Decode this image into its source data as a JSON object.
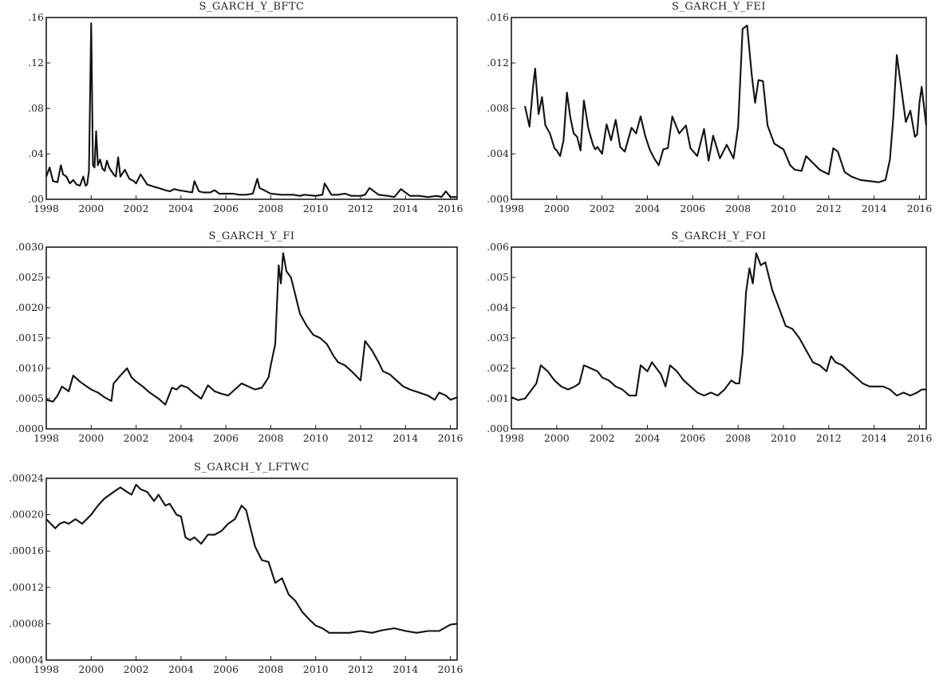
{
  "chart_data": [
    {
      "type": "line",
      "title": "S_GARCH_Y_BFTC",
      "x_ticks": [
        "1998",
        "2000",
        "2002",
        "2004",
        "2006",
        "2008",
        "2010",
        "2012",
        "2014",
        "2016"
      ],
      "y_ticks": [
        ".00",
        ".04",
        ".08",
        ".12",
        ".16"
      ],
      "xlim": [
        1998,
        2016.3
      ],
      "ylim": [
        0,
        0.16
      ],
      "series": [
        {
          "x": [
            1998.0,
            1998.15,
            1998.3,
            1998.5,
            1998.65,
            1998.75,
            1998.9,
            1999.05,
            1999.2,
            1999.35,
            1999.5,
            1999.65,
            1999.75,
            1999.82,
            1999.9,
            2000.0,
            2000.08,
            2000.15,
            2000.22,
            2000.3,
            2000.4,
            2000.5,
            2000.6,
            2000.7,
            2000.8,
            2000.9,
            2001.0,
            2001.1,
            2001.2,
            2001.3,
            2001.5,
            2001.7,
            2001.9,
            2002.0,
            2002.2,
            2002.5,
            2002.8,
            2003.0,
            2003.3,
            2003.5,
            2003.7,
            2003.9,
            2004.2,
            2004.5,
            2004.6,
            2004.8,
            2005.0,
            2005.3,
            2005.5,
            2005.7,
            2006.0,
            2006.3,
            2006.6,
            2006.9,
            2007.2,
            2007.4,
            2007.5,
            2007.7,
            2008.0,
            2008.5,
            2009.0,
            2009.3,
            2009.5,
            2010.0,
            2010.3,
            2010.4,
            2010.7,
            2011.0,
            2011.3,
            2011.6,
            2012.0,
            2012.2,
            2012.4,
            2012.8,
            2013.2,
            2013.5,
            2013.8,
            2014.2,
            2014.6,
            2015.0,
            2015.4,
            2015.6,
            2015.8,
            2016.0,
            2016.3
          ],
          "y": [
            0.02,
            0.028,
            0.016,
            0.015,
            0.03,
            0.022,
            0.02,
            0.014,
            0.017,
            0.013,
            0.012,
            0.02,
            0.012,
            0.013,
            0.025,
            0.155,
            0.03,
            0.028,
            0.06,
            0.03,
            0.035,
            0.027,
            0.025,
            0.034,
            0.028,
            0.025,
            0.022,
            0.02,
            0.037,
            0.02,
            0.026,
            0.018,
            0.016,
            0.014,
            0.022,
            0.013,
            0.011,
            0.01,
            0.008,
            0.007,
            0.009,
            0.008,
            0.007,
            0.006,
            0.016,
            0.007,
            0.006,
            0.006,
            0.008,
            0.005,
            0.005,
            0.005,
            0.004,
            0.004,
            0.005,
            0.018,
            0.01,
            0.008,
            0.005,
            0.004,
            0.004,
            0.003,
            0.004,
            0.003,
            0.004,
            0.014,
            0.004,
            0.004,
            0.005,
            0.003,
            0.003,
            0.004,
            0.01,
            0.004,
            0.003,
            0.002,
            0.009,
            0.003,
            0.003,
            0.002,
            0.003,
            0.002,
            0.007,
            0.002,
            0.002
          ]
        }
      ]
    },
    {
      "type": "line",
      "title": "S_GARCH_Y_FEI",
      "x_ticks": [
        "1998",
        "2000",
        "2002",
        "2004",
        "2006",
        "2008",
        "2010",
        "2012",
        "2014",
        "2016"
      ],
      "y_ticks": [
        ".000",
        ".004",
        ".008",
        ".012",
        ".016"
      ],
      "xlim": [
        1998,
        2016.3
      ],
      "ylim": [
        0,
        0.016
      ],
      "series": [
        {
          "x": [
            1998.6,
            1998.8,
            1998.95,
            1999.05,
            1999.2,
            1999.35,
            1999.5,
            1999.7,
            1999.9,
            2000.0,
            2000.15,
            2000.3,
            2000.45,
            2000.6,
            2000.75,
            2000.9,
            2001.05,
            2001.2,
            2001.4,
            2001.6,
            2001.7,
            2001.8,
            2002.0,
            2002.2,
            2002.4,
            2002.6,
            2002.8,
            2003.0,
            2003.3,
            2003.5,
            2003.7,
            2003.9,
            2004.1,
            2004.3,
            2004.5,
            2004.7,
            2004.9,
            2005.1,
            2005.4,
            2005.7,
            2005.9,
            2006.2,
            2006.5,
            2006.7,
            2006.9,
            2007.2,
            2007.5,
            2007.8,
            2008.0,
            2008.2,
            2008.4,
            2008.6,
            2008.75,
            2008.9,
            2009.1,
            2009.3,
            2009.6,
            2010.0,
            2010.3,
            2010.5,
            2010.8,
            2011.0,
            2011.3,
            2011.6,
            2012.0,
            2012.2,
            2012.4,
            2012.7,
            2013.0,
            2013.4,
            2013.8,
            2014.2,
            2014.5,
            2014.7,
            2014.85,
            2015.0,
            2015.2,
            2015.4,
            2015.6,
            2015.8,
            2015.9,
            2016.0,
            2016.1,
            2016.3
          ],
          "y": [
            0.0082,
            0.0064,
            0.0098,
            0.0115,
            0.0075,
            0.009,
            0.0065,
            0.0058,
            0.0045,
            0.0043,
            0.0038,
            0.0052,
            0.0094,
            0.0072,
            0.0058,
            0.0055,
            0.0043,
            0.0087,
            0.0062,
            0.0048,
            0.0044,
            0.0046,
            0.004,
            0.0066,
            0.0052,
            0.007,
            0.0046,
            0.0042,
            0.0063,
            0.0058,
            0.0073,
            0.0056,
            0.0044,
            0.0036,
            0.003,
            0.0044,
            0.0045,
            0.0073,
            0.0058,
            0.0065,
            0.0045,
            0.0038,
            0.0062,
            0.0034,
            0.0056,
            0.0036,
            0.0048,
            0.0036,
            0.0064,
            0.015,
            0.0153,
            0.011,
            0.0085,
            0.0105,
            0.0104,
            0.0065,
            0.0049,
            0.0044,
            0.003,
            0.0026,
            0.0025,
            0.0038,
            0.0032,
            0.0026,
            0.0022,
            0.0045,
            0.0042,
            0.0024,
            0.002,
            0.0017,
            0.0016,
            0.0015,
            0.0017,
            0.0035,
            0.0073,
            0.0127,
            0.0098,
            0.0068,
            0.0078,
            0.0055,
            0.0057,
            0.0085,
            0.0099,
            0.0065
          ]
        }
      ]
    },
    {
      "type": "line",
      "title": "S_GARCH_Y_FI",
      "x_ticks": [
        "1998",
        "2000",
        "2002",
        "2004",
        "2006",
        "2008",
        "2010",
        "2012",
        "2014",
        "2016"
      ],
      "y_ticks": [
        ".0000",
        ".0005",
        ".0010",
        ".0015",
        ".0020",
        ".0025",
        ".0030"
      ],
      "xlim": [
        1998,
        2016.3
      ],
      "ylim": [
        0,
        0.003
      ],
      "series": [
        {
          "x": [
            1998.0,
            1998.3,
            1998.5,
            1998.7,
            1999.0,
            1999.2,
            1999.5,
            1999.8,
            2000.0,
            2000.3,
            2000.6,
            2000.9,
            2001.0,
            2001.3,
            2001.6,
            2001.8,
            2002.0,
            2002.3,
            2002.6,
            2003.0,
            2003.3,
            2003.6,
            2003.8,
            2004.0,
            2004.3,
            2004.6,
            2004.9,
            2005.2,
            2005.5,
            2005.8,
            2006.1,
            2006.4,
            2006.7,
            2007.0,
            2007.3,
            2007.6,
            2007.9,
            2008.0,
            2008.2,
            2008.35,
            2008.45,
            2008.55,
            2008.7,
            2008.9,
            2009.1,
            2009.3,
            2009.6,
            2009.9,
            2010.2,
            2010.5,
            2010.8,
            2011.0,
            2011.3,
            2011.6,
            2012.0,
            2012.2,
            2012.5,
            2012.8,
            2013.0,
            2013.3,
            2013.6,
            2013.9,
            2014.2,
            2014.6,
            2015.0,
            2015.3,
            2015.5,
            2015.8,
            2016.0,
            2016.3
          ],
          "y": [
            0.00048,
            0.00045,
            0.00055,
            0.0007,
            0.00062,
            0.00088,
            0.00078,
            0.0007,
            0.00065,
            0.0006,
            0.00052,
            0.00046,
            0.00075,
            0.00088,
            0.001,
            0.00085,
            0.00078,
            0.0007,
            0.0006,
            0.0005,
            0.0004,
            0.00068,
            0.00065,
            0.00072,
            0.00068,
            0.00058,
            0.0005,
            0.00072,
            0.00062,
            0.00058,
            0.00055,
            0.00065,
            0.00075,
            0.0007,
            0.00065,
            0.00068,
            0.00085,
            0.00105,
            0.0014,
            0.0027,
            0.0024,
            0.0029,
            0.0026,
            0.0025,
            0.0022,
            0.0019,
            0.0017,
            0.00155,
            0.0015,
            0.0014,
            0.0012,
            0.0011,
            0.00105,
            0.00095,
            0.0008,
            0.00145,
            0.0013,
            0.0011,
            0.00095,
            0.0009,
            0.0008,
            0.0007,
            0.00065,
            0.0006,
            0.00055,
            0.00048,
            0.0006,
            0.00055,
            0.00048,
            0.00052
          ]
        }
      ]
    },
    {
      "type": "line",
      "title": "S_GARCH_Y_FOI",
      "x_ticks": [
        "1998",
        "2000",
        "2002",
        "2004",
        "2006",
        "2008",
        "2010",
        "2012",
        "2014",
        "2016"
      ],
      "y_ticks": [
        ".000",
        ".001",
        ".002",
        ".003",
        ".004",
        ".005",
        ".006"
      ],
      "xlim": [
        1998,
        2016.3
      ],
      "ylim": [
        0,
        0.006
      ],
      "series": [
        {
          "x": [
            1998.0,
            1998.3,
            1998.6,
            1998.9,
            1999.1,
            1999.3,
            1999.6,
            1999.9,
            2000.2,
            2000.5,
            2000.8,
            2001.0,
            2001.2,
            2001.5,
            2001.8,
            2002.0,
            2002.3,
            2002.6,
            2002.9,
            2003.2,
            2003.5,
            2003.7,
            2004.0,
            2004.2,
            2004.6,
            2004.8,
            2005.0,
            2005.3,
            2005.6,
            2005.9,
            2006.2,
            2006.5,
            2006.8,
            2007.1,
            2007.4,
            2007.7,
            2007.9,
            2008.05,
            2008.2,
            2008.35,
            2008.5,
            2008.65,
            2008.8,
            2009.0,
            2009.2,
            2009.5,
            2009.8,
            2010.1,
            2010.4,
            2010.7,
            2011.0,
            2011.3,
            2011.6,
            2011.9,
            2012.1,
            2012.3,
            2012.6,
            2012.9,
            2013.2,
            2013.5,
            2013.8,
            2014.1,
            2014.4,
            2014.7,
            2015.0,
            2015.3,
            2015.6,
            2015.9,
            2016.1,
            2016.3
          ],
          "y": [
            0.00105,
            0.00095,
            0.001,
            0.0013,
            0.0015,
            0.0021,
            0.0019,
            0.0016,
            0.0014,
            0.0013,
            0.0014,
            0.0015,
            0.0021,
            0.002,
            0.0019,
            0.0017,
            0.0016,
            0.0014,
            0.0013,
            0.0011,
            0.0011,
            0.0021,
            0.0019,
            0.0022,
            0.0018,
            0.0014,
            0.0021,
            0.0019,
            0.0016,
            0.0014,
            0.0012,
            0.0011,
            0.0012,
            0.0011,
            0.0013,
            0.0016,
            0.0015,
            0.0015,
            0.0025,
            0.0045,
            0.0053,
            0.0048,
            0.0058,
            0.0054,
            0.0055,
            0.0046,
            0.004,
            0.0034,
            0.0033,
            0.003,
            0.0026,
            0.0022,
            0.0021,
            0.0019,
            0.0024,
            0.0022,
            0.0021,
            0.0019,
            0.0017,
            0.0015,
            0.0014,
            0.0014,
            0.0014,
            0.0013,
            0.0011,
            0.0012,
            0.0011,
            0.0012,
            0.0013,
            0.0013
          ]
        }
      ]
    },
    {
      "type": "line",
      "title": "S_GARCH_Y_LFTWC",
      "x_ticks": [
        "1998",
        "2000",
        "2002",
        "2004",
        "2006",
        "2008",
        "2010",
        "2012",
        "2014",
        "2016"
      ],
      "y_ticks": [
        ".00004",
        ".00008",
        ".00012",
        ".00016",
        ".00020",
        ".00024"
      ],
      "xlim": [
        1998,
        2016.3
      ],
      "ylim": [
        4e-05,
        0.00024
      ],
      "series": [
        {
          "x": [
            1998.0,
            1998.2,
            1998.4,
            1998.6,
            1998.8,
            1999.0,
            1999.3,
            1999.6,
            2000.0,
            2000.3,
            2000.6,
            2001.0,
            2001.3,
            2001.6,
            2001.8,
            2002.0,
            2002.2,
            2002.5,
            2002.8,
            2003.0,
            2003.3,
            2003.5,
            2003.8,
            2004.0,
            2004.2,
            2004.4,
            2004.6,
            2004.9,
            2005.2,
            2005.5,
            2005.8,
            2006.1,
            2006.4,
            2006.7,
            2006.9,
            2007.1,
            2007.3,
            2007.6,
            2007.9,
            2008.2,
            2008.5,
            2008.8,
            2009.1,
            2009.4,
            2009.7,
            2010.0,
            2010.3,
            2010.6,
            2011.0,
            2011.5,
            2012.0,
            2012.5,
            2013.0,
            2013.5,
            2014.0,
            2014.5,
            2015.0,
            2015.5,
            2016.0,
            2016.3
          ],
          "y": [
            0.000195,
            0.00019,
            0.000185,
            0.00019,
            0.000192,
            0.00019,
            0.000195,
            0.00019,
            0.0002,
            0.00021,
            0.000218,
            0.000225,
            0.00023,
            0.000225,
            0.000222,
            0.000233,
            0.000228,
            0.000225,
            0.000215,
            0.000222,
            0.00021,
            0.000212,
            0.0002,
            0.000198,
            0.000175,
            0.000172,
            0.000175,
            0.000168,
            0.000178,
            0.000178,
            0.000182,
            0.00019,
            0.000195,
            0.00021,
            0.000205,
            0.000185,
            0.000165,
            0.00015,
            0.000148,
            0.000125,
            0.00013,
            0.000112,
            0.000105,
            9.3e-05,
            8.5e-05,
            7.8e-05,
            7.5e-05,
            7e-05,
            7e-05,
            7e-05,
            7.2e-05,
            7e-05,
            7.3e-05,
            7.5e-05,
            7.2e-05,
            7e-05,
            7.2e-05,
            7.2e-05,
            7.9e-05,
            8e-05
          ]
        }
      ]
    }
  ]
}
